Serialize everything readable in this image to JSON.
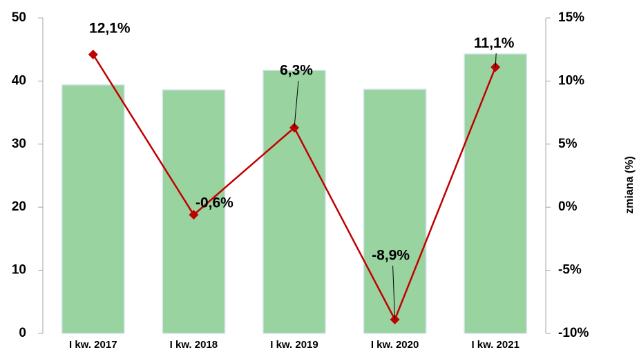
{
  "chart_data": {
    "type": "bar_line",
    "categories": [
      "I kw. 2017",
      "I kw. 2018",
      "I kw. 2019",
      "I kw. 2020",
      "I kw. 2021"
    ],
    "y2_label": "zmiana (%)",
    "series": [
      {
        "type": "bar",
        "color": "#99d3a0",
        "values": [
          39.4,
          38.6,
          41.7,
          38.7,
          44.3
        ]
      },
      {
        "type": "line",
        "axis": "y2",
        "color": "#c00000",
        "values": [
          12.1,
          -0.6,
          6.3,
          -8.9,
          11.1
        ],
        "value_labels": [
          "12,1%",
          "-0,6%",
          "6,3%",
          "-8,9%",
          "11,1%"
        ]
      }
    ],
    "ylim": [
      0,
      50
    ],
    "yticks": [
      0,
      10,
      20,
      30,
      40,
      50
    ],
    "y2lim": [
      -10,
      15
    ],
    "y2ticks": [
      {
        "value": -10,
        "label": "-10%"
      },
      {
        "value": -5,
        "label": "-5%"
      },
      {
        "value": 0,
        "label": "0%"
      },
      {
        "value": 5,
        "label": "5%"
      },
      {
        "value": 10,
        "label": "10%"
      },
      {
        "value": 15,
        "label": "15%"
      }
    ]
  }
}
